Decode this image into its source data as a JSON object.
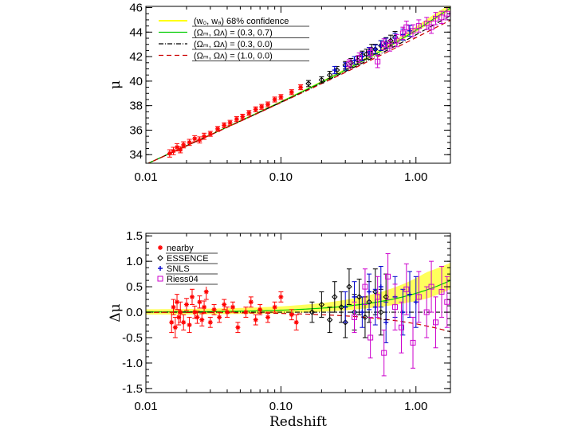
{
  "chart_data": [
    {
      "type": "scatter",
      "title": "",
      "xlabel": "",
      "ylabel": "μ",
      "xscale": "log",
      "xlim": [
        0.01,
        1.8
      ],
      "ylim": [
        33.3,
        46.1
      ],
      "xticks": [
        {
          "v": 0.01,
          "label": "0.01"
        },
        {
          "v": 0.1,
          "label": "0.10"
        },
        {
          "v": 1.0,
          "label": "1.00"
        }
      ],
      "yticks": [
        {
          "v": 34,
          "label": "34"
        },
        {
          "v": 36,
          "label": "36"
        },
        {
          "v": 38,
          "label": "38"
        },
        {
          "v": 40,
          "label": "40"
        },
        {
          "v": 42,
          "label": "42"
        },
        {
          "v": 44,
          "label": "44"
        },
        {
          "v": 46,
          "label": "46"
        }
      ],
      "legend_position": "top-left",
      "legend": [
        {
          "label": "(w₀, wₐ)  68% confidence",
          "color": "#ffff00",
          "style": "band"
        },
        {
          "label": "(Ωₘ, Ωᴧ) = (0.3, 0.7)",
          "color": "#00cc00",
          "style": "solid"
        },
        {
          "label": "(Ωₘ, Ωᴧ) = (0.3, 0.0)",
          "color": "#000000",
          "style": "dashdot"
        },
        {
          "label": "(Ωₘ, Ωᴧ) = (1.0, 0.0)",
          "color": "#cc0000",
          "style": "dashed"
        }
      ],
      "series": [
        {
          "name": "nearby",
          "color": "#ff0000",
          "marker": "star",
          "points": [
            [
              0.015,
              34.1,
              0.3
            ],
            [
              0.016,
              34.3,
              0.3
            ],
            [
              0.017,
              34.6,
              0.3
            ],
            [
              0.018,
              34.4,
              0.25
            ],
            [
              0.019,
              34.8,
              0.25
            ],
            [
              0.021,
              35.0,
              0.25
            ],
            [
              0.023,
              35.3,
              0.25
            ],
            [
              0.025,
              35.2,
              0.25
            ],
            [
              0.027,
              35.5,
              0.25
            ],
            [
              0.03,
              35.7,
              0.2
            ],
            [
              0.034,
              36.1,
              0.2
            ],
            [
              0.038,
              36.4,
              0.2
            ],
            [
              0.042,
              36.6,
              0.2
            ],
            [
              0.047,
              36.9,
              0.2
            ],
            [
              0.052,
              37.1,
              0.2
            ],
            [
              0.058,
              37.4,
              0.2
            ],
            [
              0.065,
              37.7,
              0.2
            ],
            [
              0.072,
              37.9,
              0.2
            ],
            [
              0.08,
              38.1,
              0.2
            ],
            [
              0.09,
              38.5,
              0.2
            ],
            [
              0.1,
              38.7,
              0.2
            ],
            [
              0.12,
              39.1,
              0.2
            ],
            [
              0.14,
              39.5,
              0.2
            ]
          ]
        },
        {
          "name": "ESSENCE",
          "color": "#000000",
          "marker": "diamond",
          "points": [
            [
              0.16,
              39.8,
              0.25
            ],
            [
              0.2,
              40.1,
              0.25
            ],
            [
              0.23,
              40.5,
              0.3
            ],
            [
              0.26,
              40.9,
              0.3
            ],
            [
              0.3,
              41.3,
              0.3
            ],
            [
              0.33,
              41.5,
              0.35
            ],
            [
              0.37,
              41.7,
              0.35
            ],
            [
              0.4,
              42.1,
              0.35
            ],
            [
              0.43,
              42.2,
              0.4
            ],
            [
              0.47,
              42.6,
              0.4
            ],
            [
              0.5,
              42.6,
              0.4
            ],
            [
              0.55,
              42.9,
              0.4
            ],
            [
              0.6,
              43.1,
              0.45
            ],
            [
              0.65,
              43.3,
              0.45
            ],
            [
              0.7,
              43.6,
              0.45
            ]
          ]
        },
        {
          "name": "SNLS",
          "color": "#0000cc",
          "marker": "plus",
          "points": [
            [
              0.25,
              40.9,
              0.3
            ],
            [
              0.3,
              41.2,
              0.3
            ],
            [
              0.35,
              41.7,
              0.3
            ],
            [
              0.4,
              42.0,
              0.35
            ],
            [
              0.45,
              42.4,
              0.35
            ],
            [
              0.5,
              42.6,
              0.35
            ],
            [
              0.55,
              42.9,
              0.4
            ],
            [
              0.6,
              43.1,
              0.4
            ],
            [
              0.7,
              43.5,
              0.4
            ],
            [
              0.8,
              43.8,
              0.45
            ],
            [
              0.9,
              44.1,
              0.45
            ]
          ]
        },
        {
          "name": "Riess04",
          "color": "#cc00cc",
          "marker": "square",
          "points": [
            [
              0.32,
              41.4,
              0.35
            ],
            [
              0.38,
              41.9,
              0.4
            ],
            [
              0.46,
              42.3,
              0.4
            ],
            [
              0.52,
              41.6,
              0.5
            ],
            [
              0.58,
              43.0,
              0.45
            ],
            [
              0.64,
              42.9,
              0.45
            ],
            [
              0.72,
              43.3,
              0.5
            ],
            [
              0.8,
              43.9,
              0.5
            ],
            [
              0.85,
              44.4,
              0.5
            ],
            [
              0.95,
              44.1,
              0.5
            ],
            [
              1.05,
              44.5,
              0.5
            ],
            [
              1.2,
              44.7,
              0.5
            ],
            [
              1.3,
              44.4,
              0.5
            ],
            [
              1.4,
              45.1,
              0.5
            ],
            [
              1.55,
              45.2,
              0.5
            ],
            [
              1.7,
              45.5,
              0.5
            ]
          ]
        }
      ]
    },
    {
      "type": "scatter",
      "title": "",
      "xlabel": "Redshift",
      "ylabel": "Δμ",
      "xscale": "log",
      "xlim": [
        0.01,
        1.8
      ],
      "ylim": [
        -1.58,
        1.55
      ],
      "xticks": [
        {
          "v": 0.01,
          "label": "0.01"
        },
        {
          "v": 0.1,
          "label": "0.10"
        },
        {
          "v": 1.0,
          "label": "1.00"
        }
      ],
      "yticks": [
        {
          "v": -1.5,
          "label": "-1.5"
        },
        {
          "v": -1.0,
          "label": "-1.0"
        },
        {
          "v": -0.5,
          "label": "-0.5"
        },
        {
          "v": 0.0,
          "label": "0.0"
        },
        {
          "v": 0.5,
          "label": "0.5"
        },
        {
          "v": 1.0,
          "label": "1.0"
        },
        {
          "v": 1.5,
          "label": "1.5"
        }
      ],
      "legend_position": "top-left",
      "legend": [
        {
          "label": "nearby",
          "color": "#ff0000",
          "marker": "star"
        },
        {
          "label": "ESSENCE",
          "color": "#000000",
          "marker": "diamond"
        },
        {
          "label": "SNLS",
          "color": "#0000cc",
          "marker": "plus"
        },
        {
          "label": "Riess04",
          "color": "#cc00cc",
          "marker": "square"
        }
      ],
      "series": [
        {
          "name": "nearby",
          "color": "#ff0000",
          "marker": "star",
          "points": [
            [
              0.0155,
              -0.2,
              0.2
            ],
            [
              0.016,
              0.1,
              0.15
            ],
            [
              0.0165,
              -0.3,
              0.2
            ],
            [
              0.017,
              0.2,
              0.15
            ],
            [
              0.0175,
              -0.1,
              0.15
            ],
            [
              0.018,
              0.0,
              0.2
            ],
            [
              0.019,
              -0.2,
              0.15
            ],
            [
              0.02,
              0.15,
              0.12
            ],
            [
              0.021,
              -0.25,
              0.15
            ],
            [
              0.022,
              0.3,
              0.15
            ],
            [
              0.023,
              0.0,
              0.12
            ],
            [
              0.024,
              -0.1,
              0.12
            ],
            [
              0.025,
              0.2,
              0.12
            ],
            [
              0.026,
              -0.15,
              0.12
            ],
            [
              0.027,
              0.1,
              0.12
            ],
            [
              0.028,
              0.4,
              0.15
            ],
            [
              0.03,
              -0.2,
              0.1
            ],
            [
              0.032,
              0.05,
              0.1
            ],
            [
              0.035,
              -0.1,
              0.1
            ],
            [
              0.038,
              0.15,
              0.1
            ],
            [
              0.04,
              0.0,
              0.1
            ],
            [
              0.044,
              0.1,
              0.1
            ],
            [
              0.048,
              -0.3,
              0.1
            ],
            [
              0.055,
              0.0,
              0.1
            ],
            [
              0.06,
              0.2,
              0.1
            ],
            [
              0.065,
              -0.15,
              0.1
            ],
            [
              0.07,
              0.05,
              0.1
            ],
            [
              0.08,
              -0.1,
              0.1
            ],
            [
              0.09,
              0.1,
              0.1
            ],
            [
              0.1,
              0.3,
              0.1
            ],
            [
              0.12,
              -0.05,
              0.1
            ],
            [
              0.13,
              -0.2,
              0.15
            ]
          ]
        },
        {
          "name": "ESSENCE",
          "color": "#000000",
          "marker": "diamond",
          "points": [
            [
              0.17,
              0.0,
              0.2
            ],
            [
              0.2,
              0.15,
              0.25
            ],
            [
              0.23,
              -0.15,
              0.25
            ],
            [
              0.25,
              0.3,
              0.3
            ],
            [
              0.28,
              0.1,
              0.3
            ],
            [
              0.3,
              -0.2,
              0.3
            ],
            [
              0.32,
              0.5,
              0.35
            ],
            [
              0.35,
              0.0,
              0.35
            ],
            [
              0.38,
              0.3,
              0.35
            ],
            [
              0.42,
              -0.1,
              0.4
            ],
            [
              0.45,
              0.2,
              0.4
            ],
            [
              0.5,
              0.4,
              0.45
            ],
            [
              0.55,
              0.0,
              0.45
            ],
            [
              0.6,
              0.3,
              0.45
            ]
          ]
        },
        {
          "name": "SNLS",
          "color": "#0000cc",
          "marker": "plus",
          "points": [
            [
              0.3,
              0.1,
              0.3
            ],
            [
              0.35,
              0.3,
              0.3
            ],
            [
              0.4,
              0.0,
              0.3
            ],
            [
              0.45,
              0.4,
              0.35
            ],
            [
              0.5,
              0.1,
              0.35
            ],
            [
              0.55,
              0.5,
              0.4
            ],
            [
              0.6,
              -0.2,
              0.4
            ],
            [
              0.7,
              0.3,
              0.4
            ],
            [
              0.8,
              0.0,
              0.45
            ],
            [
              0.9,
              0.35,
              0.45
            ],
            [
              1.0,
              0.2,
              0.5
            ]
          ]
        },
        {
          "name": "Riess04",
          "color": "#cc00cc",
          "marker": "square",
          "points": [
            [
              0.35,
              -0.1,
              0.3
            ],
            [
              0.42,
              0.5,
              0.35
            ],
            [
              0.46,
              -0.5,
              0.4
            ],
            [
              0.52,
              0.3,
              0.4
            ],
            [
              0.58,
              -0.8,
              0.45
            ],
            [
              0.62,
              0.7,
              0.45
            ],
            [
              0.7,
              0.1,
              0.45
            ],
            [
              0.78,
              -0.3,
              0.5
            ],
            [
              0.85,
              0.45,
              0.5
            ],
            [
              0.95,
              -0.6,
              0.5
            ],
            [
              1.05,
              0.3,
              0.5
            ],
            [
              1.2,
              0.0,
              0.5
            ],
            [
              1.3,
              0.5,
              0.5
            ],
            [
              1.4,
              -0.2,
              0.5
            ],
            [
              1.55,
              0.4,
              0.5
            ],
            [
              1.7,
              0.2,
              0.5
            ]
          ]
        }
      ]
    }
  ]
}
